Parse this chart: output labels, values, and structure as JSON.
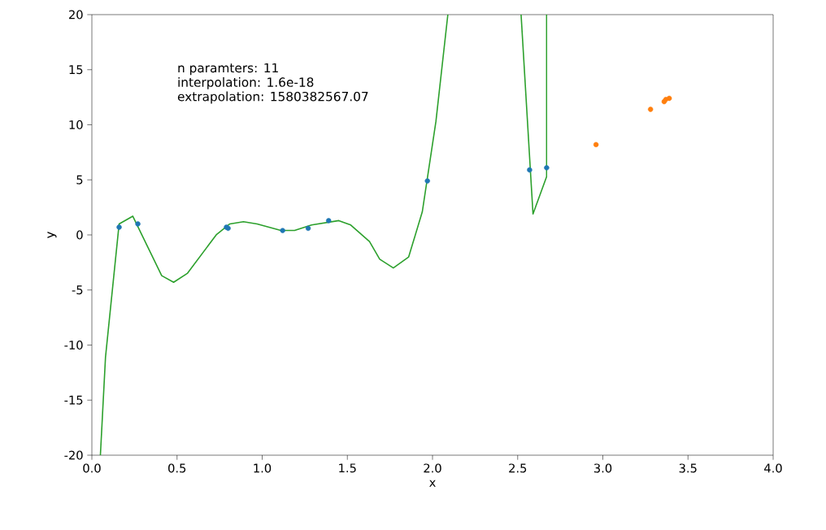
{
  "chart_data": {
    "type": "scatter",
    "xlabel": "x",
    "ylabel": "y",
    "annotations": [
      "n paramters: 11",
      "interpolation: 1.6e-18",
      "extrapolation: 1580382567.07"
    ],
    "xlim": [
      0,
      4
    ],
    "ylim": [
      -20,
      20
    ],
    "xticks": [
      {
        "value": 0,
        "label": "0.0"
      },
      {
        "value": 0.5,
        "label": "0.5"
      },
      {
        "value": 1,
        "label": "1.0"
      },
      {
        "value": 1.5,
        "label": "1.5"
      },
      {
        "value": 2,
        "label": "2.0"
      },
      {
        "value": 2.5,
        "label": "2.5"
      },
      {
        "value": 3,
        "label": "3.0"
      },
      {
        "value": 3.5,
        "label": "3.5"
      },
      {
        "value": 4,
        "label": "4.0"
      }
    ],
    "yticks": [
      -20,
      -15,
      -10,
      -5,
      0,
      5,
      10,
      15,
      20
    ],
    "series": [
      {
        "marker": "circle",
        "color": "#1f77b4",
        "x": [
          0.16,
          0.27,
          0.79,
          0.8,
          1.12,
          1.27,
          1.39,
          1.97,
          2.57,
          2.67
        ],
        "values": [
          0.7,
          1.0,
          0.7,
          0.6,
          0.4,
          0.6,
          1.3,
          4.9,
          5.9,
          6.1
        ]
      },
      {
        "marker": "circle",
        "color": "#ff7f0e",
        "x": [
          2.96,
          3.28,
          3.36,
          3.37,
          3.39
        ],
        "values": [
          8.2,
          11.4,
          12.1,
          12.3,
          12.4
        ]
      },
      {
        "type": "line",
        "marker": "none",
        "color": "#2ca02c",
        "x": [
          0.05,
          0.08,
          0.16,
          0.24,
          0.41,
          0.48,
          0.56,
          0.73,
          0.81,
          0.89,
          0.97,
          1.11,
          1.19,
          1.29,
          1.45,
          1.52,
          1.63,
          1.69,
          1.77,
          1.86,
          1.94,
          2.02,
          2.09,
          2.3,
          2.52,
          2.59,
          2.67,
          2.67
        ],
        "values": [
          -20,
          -11.1,
          1.0,
          1.7,
          -3.7,
          -4.3,
          -3.5,
          0.0,
          1.0,
          1.2,
          1.0,
          0.4,
          0.4,
          0.9,
          1.3,
          0.9,
          -0.6,
          -2.2,
          -3.0,
          -2.0,
          2.1,
          10.3,
          20,
          null,
          20,
          1.9,
          5.3,
          20
        ]
      }
    ]
  }
}
